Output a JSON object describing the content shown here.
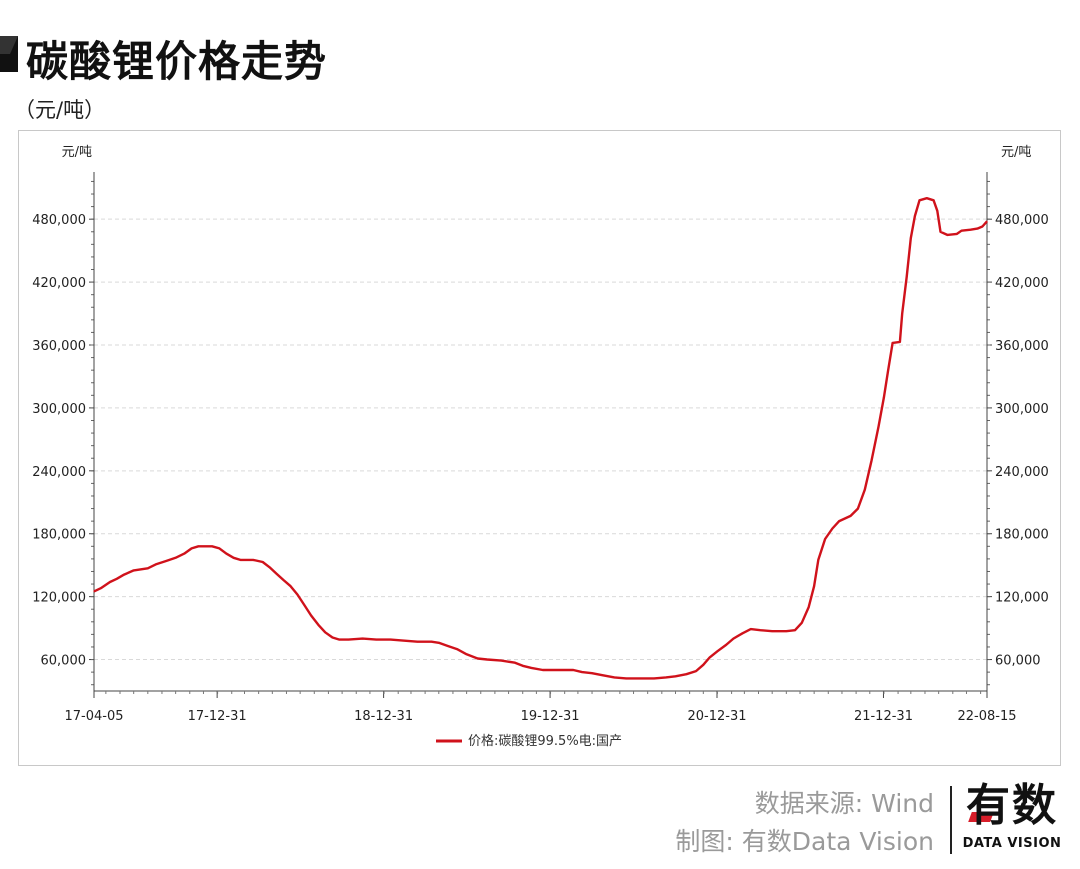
{
  "header": {
    "title": "碳酸锂价格走势",
    "unit": "（元/吨）"
  },
  "footer": {
    "source": "数据来源: Wind",
    "credit": "制图: 有数Data Vision",
    "logo_text": "有数",
    "logo_sub": "DATA VISION"
  },
  "colors": {
    "line": "#d0121b",
    "logo_accent": "#d81e2a"
  },
  "chart_data": {
    "type": "line",
    "title": "",
    "ylabel_left": "元/吨",
    "ylabel_right": "元/吨",
    "ylim": [
      30000,
      525000
    ],
    "yticks": [
      60000,
      120000,
      180000,
      240000,
      300000,
      360000,
      420000,
      480000
    ],
    "ytick_labels": [
      "60,000",
      "120,000",
      "180,000",
      "240,000",
      "300,000",
      "360,000",
      "420,000",
      "480,000"
    ],
    "xlim": [
      "2017-04-05",
      "2022-08-15"
    ],
    "xticks": [
      {
        "date": "2017-04-05",
        "label": "17-04-05"
      },
      {
        "date": "2017-12-31",
        "label": "17-12-31"
      },
      {
        "date": "2018-12-31",
        "label": "18-12-31"
      },
      {
        "date": "2019-12-31",
        "label": "19-12-31"
      },
      {
        "date": "2020-12-31",
        "label": "20-12-31"
      },
      {
        "date": "2021-12-31",
        "label": "21-12-31"
      },
      {
        "date": "2022-08-15",
        "label": "22-08-15"
      }
    ],
    "grid": "horizontal dashed",
    "legend_position": "bottom-center",
    "series": [
      {
        "name": "价格:碳酸锂99.5%电:国产",
        "points": [
          [
            "2017-04-05",
            125000
          ],
          [
            "2017-04-20",
            128000
          ],
          [
            "2017-05-10",
            134000
          ],
          [
            "2017-05-25",
            137000
          ],
          [
            "2017-06-10",
            141000
          ],
          [
            "2017-07-01",
            145000
          ],
          [
            "2017-08-01",
            147000
          ],
          [
            "2017-08-20",
            151000
          ],
          [
            "2017-09-10",
            154000
          ],
          [
            "2017-10-01",
            157000
          ],
          [
            "2017-10-20",
            161000
          ],
          [
            "2017-11-05",
            166000
          ],
          [
            "2017-11-20",
            168000
          ],
          [
            "2017-12-20",
            168000
          ],
          [
            "2018-01-05",
            166000
          ],
          [
            "2018-01-20",
            161000
          ],
          [
            "2018-02-05",
            157000
          ],
          [
            "2018-02-20",
            155000
          ],
          [
            "2018-03-20",
            155000
          ],
          [
            "2018-04-10",
            153000
          ],
          [
            "2018-04-25",
            148000
          ],
          [
            "2018-05-10",
            142000
          ],
          [
            "2018-05-25",
            136000
          ],
          [
            "2018-06-10",
            130000
          ],
          [
            "2018-06-25",
            122000
          ],
          [
            "2018-07-10",
            112000
          ],
          [
            "2018-07-25",
            102000
          ],
          [
            "2018-08-10",
            93000
          ],
          [
            "2018-08-25",
            86000
          ],
          [
            "2018-09-10",
            81000
          ],
          [
            "2018-09-25",
            79000
          ],
          [
            "2018-10-15",
            79000
          ],
          [
            "2018-11-15",
            80000
          ],
          [
            "2018-12-15",
            79000
          ],
          [
            "2019-01-15",
            79000
          ],
          [
            "2019-02-15",
            78000
          ],
          [
            "2019-03-15",
            77000
          ],
          [
            "2019-04-15",
            77000
          ],
          [
            "2019-05-01",
            76000
          ],
          [
            "2019-05-20",
            73000
          ],
          [
            "2019-06-10",
            70000
          ],
          [
            "2019-07-01",
            65000
          ],
          [
            "2019-07-25",
            61000
          ],
          [
            "2019-08-15",
            60000
          ],
          [
            "2019-09-15",
            59000
          ],
          [
            "2019-10-15",
            57000
          ],
          [
            "2019-11-01",
            54000
          ],
          [
            "2019-11-20",
            52000
          ],
          [
            "2019-12-15",
            50000
          ],
          [
            "2020-01-20",
            50000
          ],
          [
            "2020-02-20",
            50000
          ],
          [
            "2020-03-10",
            48000
          ],
          [
            "2020-04-01",
            47000
          ],
          [
            "2020-04-25",
            45000
          ],
          [
            "2020-05-20",
            43000
          ],
          [
            "2020-06-15",
            42000
          ],
          [
            "2020-08-15",
            42000
          ],
          [
            "2020-09-10",
            43000
          ],
          [
            "2020-10-01",
            44000
          ],
          [
            "2020-10-25",
            46000
          ],
          [
            "2020-11-15",
            49000
          ],
          [
            "2020-12-01",
            55000
          ],
          [
            "2020-12-15",
            62000
          ],
          [
            "2021-01-01",
            68000
          ],
          [
            "2021-01-20",
            74000
          ],
          [
            "2021-02-05",
            80000
          ],
          [
            "2021-02-25",
            85000
          ],
          [
            "2021-03-15",
            89000
          ],
          [
            "2021-04-05",
            88000
          ],
          [
            "2021-05-01",
            87000
          ],
          [
            "2021-06-01",
            87000
          ],
          [
            "2021-06-20",
            88000
          ],
          [
            "2021-07-05",
            95000
          ],
          [
            "2021-07-20",
            110000
          ],
          [
            "2021-08-01",
            130000
          ],
          [
            "2021-08-10",
            155000
          ],
          [
            "2021-08-25",
            175000
          ],
          [
            "2021-09-10",
            185000
          ],
          [
            "2021-09-25",
            192000
          ],
          [
            "2021-10-20",
            197000
          ],
          [
            "2021-11-05",
            204000
          ],
          [
            "2021-11-20",
            222000
          ],
          [
            "2021-12-05",
            250000
          ],
          [
            "2021-12-20",
            282000
          ],
          [
            "2022-01-01",
            310000
          ],
          [
            "2022-01-10",
            335000
          ],
          [
            "2022-01-20",
            362000
          ],
          [
            "2022-02-05",
            363000
          ],
          [
            "2022-02-10",
            390000
          ],
          [
            "2022-02-20",
            425000
          ],
          [
            "2022-03-01",
            462000
          ],
          [
            "2022-03-10",
            483000
          ],
          [
            "2022-03-20",
            498000
          ],
          [
            "2022-04-05",
            500000
          ],
          [
            "2022-04-20",
            498000
          ],
          [
            "2022-04-28",
            488000
          ],
          [
            "2022-05-05",
            468000
          ],
          [
            "2022-05-20",
            465000
          ],
          [
            "2022-06-10",
            466000
          ],
          [
            "2022-06-20",
            469000
          ],
          [
            "2022-07-10",
            470000
          ],
          [
            "2022-07-25",
            471000
          ],
          [
            "2022-08-05",
            473000
          ],
          [
            "2022-08-15",
            478000
          ]
        ]
      }
    ]
  }
}
